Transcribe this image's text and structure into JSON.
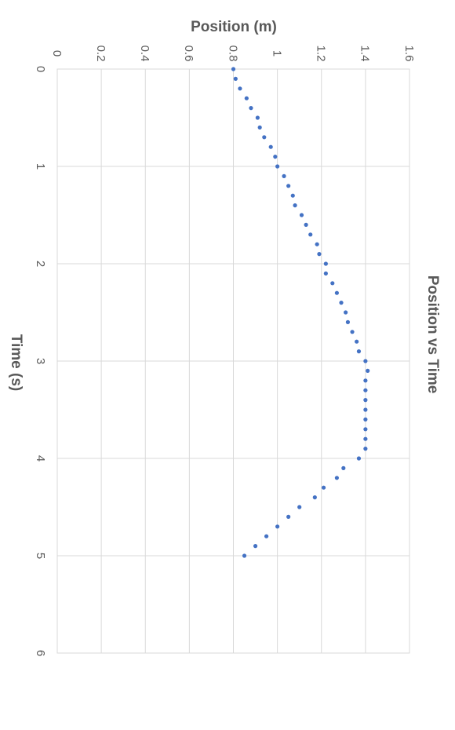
{
  "chart_data": {
    "type": "scatter",
    "title": "Position vs Time",
    "xlabel": "Time (s)",
    "ylabel": "Position (m)",
    "xlim": [
      0,
      6
    ],
    "ylim": [
      0,
      1.6
    ],
    "xticks": [
      "0",
      "1",
      "2",
      "3",
      "4",
      "5",
      "6"
    ],
    "yticks": [
      "0",
      "0.2",
      "0.4",
      "0.6",
      "0.8",
      "1",
      "1.2",
      "1.4",
      "1.6"
    ],
    "grid": true,
    "orientation": "rotated 90° clockwise",
    "marker_color": "#4472c4",
    "series": [
      {
        "points": [
          [
            0.0,
            0.8
          ],
          [
            0.1,
            0.81
          ],
          [
            0.2,
            0.83
          ],
          [
            0.3,
            0.86
          ],
          [
            0.4,
            0.88
          ],
          [
            0.5,
            0.91
          ],
          [
            0.6,
            0.92
          ],
          [
            0.7,
            0.94
          ],
          [
            0.8,
            0.97
          ],
          [
            0.9,
            0.99
          ],
          [
            1.0,
            1.0
          ],
          [
            1.1,
            1.03
          ],
          [
            1.2,
            1.05
          ],
          [
            1.3,
            1.07
          ],
          [
            1.4,
            1.08
          ],
          [
            1.5,
            1.11
          ],
          [
            1.6,
            1.13
          ],
          [
            1.7,
            1.15
          ],
          [
            1.8,
            1.18
          ],
          [
            1.9,
            1.19
          ],
          [
            2.0,
            1.22
          ],
          [
            2.1,
            1.22
          ],
          [
            2.2,
            1.25
          ],
          [
            2.3,
            1.27
          ],
          [
            2.4,
            1.29
          ],
          [
            2.5,
            1.31
          ],
          [
            2.6,
            1.32
          ],
          [
            2.7,
            1.34
          ],
          [
            2.8,
            1.36
          ],
          [
            2.9,
            1.37
          ],
          [
            3.0,
            1.4
          ],
          [
            3.1,
            1.41
          ],
          [
            3.2,
            1.4
          ],
          [
            3.3,
            1.4
          ],
          [
            3.4,
            1.4
          ],
          [
            3.5,
            1.4
          ],
          [
            3.6,
            1.4
          ],
          [
            3.7,
            1.4
          ],
          [
            3.8,
            1.4
          ],
          [
            3.9,
            1.4
          ],
          [
            4.0,
            1.37
          ],
          [
            4.1,
            1.3
          ],
          [
            4.2,
            1.27
          ],
          [
            4.3,
            1.21
          ],
          [
            4.4,
            1.17
          ],
          [
            4.5,
            1.1
          ],
          [
            4.6,
            1.05
          ],
          [
            4.7,
            1.0
          ],
          [
            4.8,
            0.95
          ],
          [
            4.9,
            0.9
          ],
          [
            5.0,
            0.85
          ]
        ]
      }
    ]
  }
}
